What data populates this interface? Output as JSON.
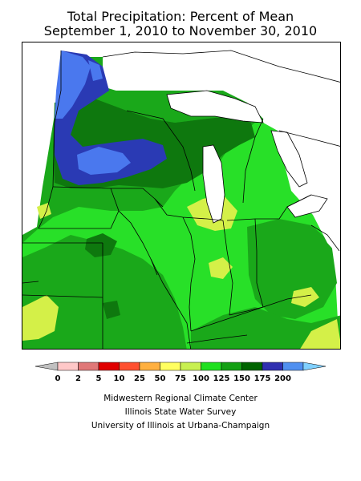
{
  "title": {
    "line1": "Total Precipitation: Percent of Mean",
    "line2": "September 1, 2010 to November 30, 2010"
  },
  "legend": {
    "labels": [
      "0",
      "2",
      "5",
      "10",
      "25",
      "50",
      "75",
      "100",
      "125",
      "150",
      "175",
      "200"
    ],
    "colors": [
      "#c0c0c0",
      "#ffc8c8",
      "#e07878",
      "#e00000",
      "#ff5030",
      "#ffb040",
      "#ffff60",
      "#c8f050",
      "#20e020",
      "#14a014",
      "#006400",
      "#3030b0",
      "#5090f0",
      "#80d0ff"
    ]
  },
  "credits": {
    "line1": "Midwestern Regional Climate Center",
    "line2": "Illinois State Water Survey",
    "line3": "University of Illinois at Urbana-Champaign"
  },
  "map": {
    "region": "Midwest",
    "palette": {
      "green_75_100": "#28e028",
      "green_100_125": "#1aa81a",
      "green_125_150": "#0e780e",
      "dark_150_175": "#2a3ab4",
      "blue_175_200": "#4a78ee",
      "yellow_50_75": "#d4f048",
      "lake": "#ffffff"
    }
  }
}
